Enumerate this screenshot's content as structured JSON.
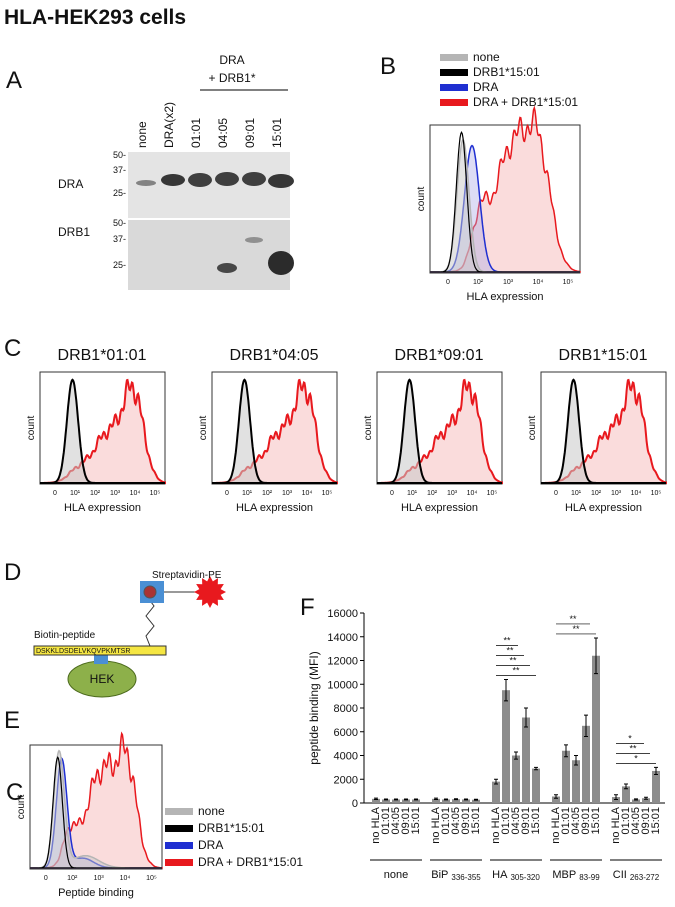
{
  "title": "HLA-HEK293   cells",
  "panel_a": {
    "letter": "A",
    "header": "DRA",
    "header_sub": "+ DRB1*",
    "lanes": [
      "none",
      "DRA(x2)",
      "01:01",
      "04:05",
      "09:01",
      "15:01"
    ],
    "blots": [
      {
        "label": "DRA",
        "markers": [
          "50-",
          "37-",
          "25-"
        ]
      },
      {
        "label": "DRB1",
        "markers": [
          "50-",
          "37-",
          "25-"
        ]
      }
    ]
  },
  "panel_b": {
    "letter": "B",
    "legend": [
      {
        "name": "none",
        "color": "#b5b5b5"
      },
      {
        "name": "DRB1*15:01",
        "color": "#000000"
      },
      {
        "name": "DRA",
        "color": "#1f2fd1"
      },
      {
        "name": "DRA + DRB1*15:01",
        "color": "#e8191e"
      }
    ],
    "ylabel": "count",
    "xlabel": "HLA expression",
    "xticks": [
      "0",
      "10²",
      "10³",
      "10⁴",
      "10⁵"
    ]
  },
  "panel_c": {
    "letter": "C",
    "ylabel": "count",
    "xlabel": "HLA expression",
    "xticks": [
      "0",
      "10¹",
      "10²",
      "10³",
      "10⁴",
      "10⁵"
    ],
    "plots": [
      "DRB1*01:01",
      "DRB1*04:05",
      "DRB1*09:01",
      "DRB1*15:01"
    ]
  },
  "panel_d": {
    "letter": "D",
    "streptavidin": "Streptavidin-PE",
    "biotin": "Biotin-peptide",
    "peptide": "DSKKLDSDELVKQVPKMTSR",
    "cell": "HEK"
  },
  "panel_e": {
    "letter": "E",
    "overlap_letter": "C",
    "ylabel": "count",
    "xlabel": "Peptide binding",
    "xticks": [
      "0",
      "10²",
      "10³",
      "10⁴",
      "10⁵"
    ],
    "legend": [
      {
        "name": "none",
        "color": "#b5b5b5"
      },
      {
        "name": "DRB1*15:01",
        "color": "#000000"
      },
      {
        "name": "DRA",
        "color": "#1f2fd1"
      },
      {
        "name": "DRA + DRB1*15:01",
        "color": "#e8191e"
      }
    ]
  },
  "chart_data": {
    "type": "bar",
    "letter": "F",
    "ylabel": "peptide binding (MFI)",
    "color": "#8c8c8c",
    "ylim": [
      0,
      16000
    ],
    "yticks": [
      0,
      2000,
      4000,
      6000,
      8000,
      10000,
      12000,
      14000,
      16000
    ],
    "categories": [
      "no HLA",
      "01:01",
      "04:05",
      "09:01",
      "15:01"
    ],
    "groups": [
      {
        "name": "none",
        "values": [
          350,
          300,
          300,
          300,
          300
        ],
        "errors": [
          60,
          40,
          40,
          40,
          40
        ]
      },
      {
        "name": "BiP",
        "sub": "336-355",
        "values": [
          350,
          300,
          320,
          300,
          280
        ],
        "errors": [
          60,
          40,
          40,
          40,
          40
        ]
      },
      {
        "name": "HA",
        "sub": "305-320",
        "values": [
          1800,
          9500,
          4000,
          7200,
          2900
        ],
        "errors": [
          200,
          900,
          300,
          800,
          100
        ],
        "significance": [
          "**",
          "**",
          "**",
          "**"
        ]
      },
      {
        "name": "MBP",
        "sub": "83-99",
        "values": [
          550,
          4400,
          3600,
          6500,
          12400
        ],
        "errors": [
          150,
          500,
          400,
          900,
          1500
        ],
        "significance": [
          "**",
          "**"
        ]
      },
      {
        "name": "CII",
        "sub": "263-272",
        "values": [
          500,
          1400,
          300,
          400,
          2700
        ],
        "errors": [
          200,
          200,
          50,
          80,
          300
        ],
        "significance": [
          "*",
          "**",
          "*"
        ]
      }
    ]
  }
}
